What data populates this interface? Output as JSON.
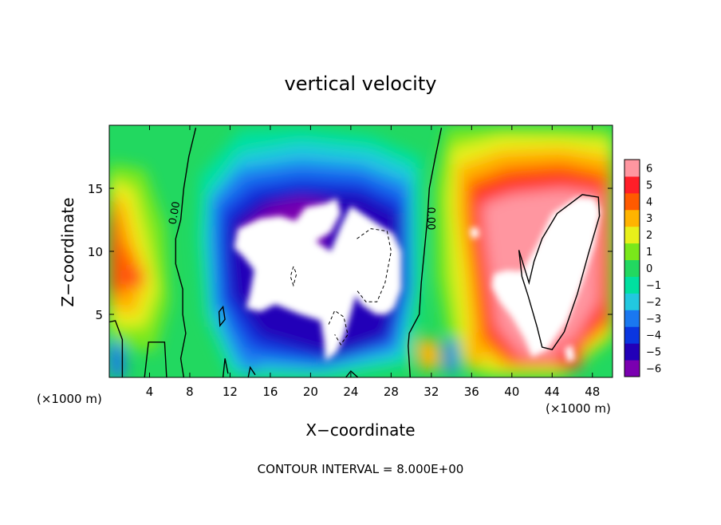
{
  "chart_data": {
    "type": "heatmap",
    "title": "vertical velocity",
    "xlabel": "X−coordinate",
    "ylabel": "Z−coordinate",
    "x_unit_label": "(×1000 m)",
    "y_unit_label": "(×1000 m)",
    "footnote": "CONTOUR INTERVAL = 8.000E+00",
    "xlim": [
      0,
      50
    ],
    "ylim": [
      0,
      20
    ],
    "x_ticks": [
      4,
      8,
      12,
      16,
      20,
      24,
      28,
      32,
      36,
      40,
      44,
      48
    ],
    "x_tick_labels": [
      "4",
      "8",
      "12",
      "16",
      "20",
      "24",
      "28",
      "32",
      "36",
      "40",
      "44",
      "48"
    ],
    "y_ticks": [
      5,
      10,
      15
    ],
    "y_tick_labels": [
      "5",
      "10",
      "15"
    ],
    "colorbar": {
      "levels": [
        -6,
        -5,
        -4,
        -3,
        -2,
        -1,
        0,
        1,
        2,
        3,
        4,
        5,
        6
      ],
      "labels": [
        "−6",
        "−5",
        "−4",
        "−3",
        "−2",
        "−1",
        "0",
        "1",
        "2",
        "3",
        "4",
        "5",
        "6"
      ],
      "colors": [
        "#7a00b0",
        "#2200b8",
        "#0a36e0",
        "#1a78f0",
        "#22c8e0",
        "#00e0a0",
        "#22d860",
        "#7ae81a",
        "#e8f01a",
        "#ffb400",
        "#ff5a00",
        "#ff1e28",
        "#ff96a0"
      ]
    },
    "contour_labels": [
      "0.00",
      "0.00"
    ],
    "features": [
      {
        "kind": "downdraft core",
        "sign": "negative",
        "x_range": [
          10,
          31
        ],
        "z_range": [
          1,
          16
        ]
      },
      {
        "kind": "updraft core",
        "sign": "positive",
        "x_range": [
          35,
          50
        ],
        "z_range": [
          1,
          15
        ]
      },
      {
        "kind": "updraft",
        "sign": "positive",
        "x_range": [
          0,
          5
        ],
        "z_range": [
          5,
          16
        ]
      }
    ]
  }
}
